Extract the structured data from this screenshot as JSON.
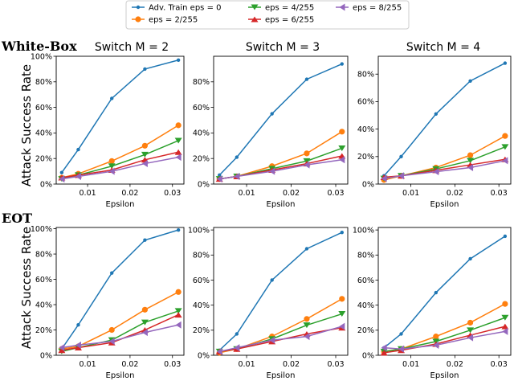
{
  "figure": {
    "row_labels": [
      "White-Box",
      "EOT"
    ],
    "column_titles": [
      "Switch M = 2",
      "Switch M = 3",
      "Switch M = 4"
    ],
    "ylabel": "Attack Success Rate",
    "xlabel": "Epsilon",
    "legend": [
      {
        "label": "Adv. Train eps = 0",
        "color": "#1f77b4",
        "marker": "circle-small"
      },
      {
        "label": "eps = 2/255",
        "color": "#ff7f0e",
        "marker": "circle"
      },
      {
        "label": "eps = 4/255",
        "color": "#2ca02c",
        "marker": "triangle-down"
      },
      {
        "label": "eps = 6/255",
        "color": "#d62728",
        "marker": "triangle-up"
      },
      {
        "label": "eps = 8/255",
        "color": "#9467bd",
        "marker": "triangle-left"
      }
    ]
  },
  "chart_data": [
    {
      "type": "line",
      "row": "White-Box",
      "title": "Switch M = 2",
      "xlabel": "Epsilon",
      "ylabel": "Attack Success Rate",
      "x": [
        0.0039,
        0.0078,
        0.0157,
        0.0235,
        0.0314
      ],
      "xticks": [
        "0.01",
        "0.02",
        "0.03"
      ],
      "xtick_values": [
        0.01,
        0.02,
        0.03
      ],
      "yticks": [
        "0%",
        "20%",
        "40%",
        "60%",
        "80%",
        "100%"
      ],
      "ytick_values": [
        0,
        20,
        40,
        60,
        80,
        100
      ],
      "xlim": [
        0.0026,
        0.0327
      ],
      "ylim": [
        0,
        100
      ],
      "grid": false,
      "series": [
        {
          "name": "Adv. Train eps = 0",
          "values": [
            9,
            27,
            67,
            90,
            97
          ]
        },
        {
          "name": "eps = 2/255",
          "values": [
            5,
            8,
            18,
            30,
            46
          ]
        },
        {
          "name": "eps = 4/255",
          "values": [
            4,
            7,
            14,
            23,
            34
          ]
        },
        {
          "name": "eps = 6/255",
          "values": [
            5,
            7,
            11,
            19,
            25
          ]
        },
        {
          "name": "eps = 8/255",
          "values": [
            4,
            6,
            10,
            16,
            21
          ]
        }
      ]
    },
    {
      "type": "line",
      "row": "White-Box",
      "title": "Switch M = 3",
      "xlabel": "Epsilon",
      "x": [
        0.0039,
        0.0078,
        0.0157,
        0.0235,
        0.0314
      ],
      "xticks": [
        "0.01",
        "0.02",
        "0.03"
      ],
      "xtick_values": [
        0.01,
        0.02,
        0.03
      ],
      "yticks": [
        "0%",
        "20%",
        "40%",
        "60%",
        "80%"
      ],
      "ytick_values": [
        0,
        20,
        40,
        60,
        80
      ],
      "xlim": [
        0.0026,
        0.0327
      ],
      "ylim": [
        0,
        100
      ],
      "grid": false,
      "series": [
        {
          "name": "Adv. Train eps = 0",
          "values": [
            7,
            21,
            55,
            82,
            94
          ]
        },
        {
          "name": "eps = 2/255",
          "values": [
            4,
            6,
            14,
            24,
            41
          ]
        },
        {
          "name": "eps = 4/255",
          "values": [
            4,
            6,
            12,
            18,
            28
          ]
        },
        {
          "name": "eps = 6/255",
          "values": [
            4,
            6,
            11,
            16,
            22
          ]
        },
        {
          "name": "eps = 8/255",
          "values": [
            4,
            6,
            10,
            15,
            19
          ]
        }
      ]
    },
    {
      "type": "line",
      "row": "White-Box",
      "title": "Switch M = 4",
      "xlabel": "Epsilon",
      "x": [
        0.0039,
        0.0078,
        0.0157,
        0.0235,
        0.0314
      ],
      "xticks": [
        "0.01",
        "0.02",
        "0.03"
      ],
      "xtick_values": [
        0.01,
        0.02,
        0.03
      ],
      "yticks": [
        "0%",
        "20%",
        "40%",
        "60%",
        "80%"
      ],
      "ytick_values": [
        0,
        20,
        40,
        60,
        80
      ],
      "xlim": [
        0.0026,
        0.0327
      ],
      "ylim": [
        0,
        93
      ],
      "grid": false,
      "series": [
        {
          "name": "Adv. Train eps = 0",
          "values": [
            6,
            20,
            51,
            75,
            88
          ]
        },
        {
          "name": "eps = 2/255",
          "values": [
            3,
            6,
            12,
            21,
            35
          ]
        },
        {
          "name": "eps = 4/255",
          "values": [
            4,
            6,
            11,
            17,
            27
          ]
        },
        {
          "name": "eps = 6/255",
          "values": [
            5,
            6,
            10,
            14,
            18
          ]
        },
        {
          "name": "eps = 8/255",
          "values": [
            4,
            6,
            9,
            12,
            17
          ]
        }
      ]
    },
    {
      "type": "line",
      "row": "EOT",
      "title": "",
      "xlabel": "Epsilon",
      "ylabel": "Attack Success Rate",
      "x": [
        0.0039,
        0.0078,
        0.0157,
        0.0235,
        0.0314
      ],
      "xticks": [
        "0.01",
        "0.02",
        "0.03"
      ],
      "xtick_values": [
        0.01,
        0.02,
        0.03
      ],
      "yticks": [
        "0%",
        "20%",
        "40%",
        "60%",
        "80%",
        "100%"
      ],
      "ytick_values": [
        0,
        20,
        40,
        60,
        80,
        100
      ],
      "xlim": [
        0.0026,
        0.0327
      ],
      "ylim": [
        0,
        101
      ],
      "grid": false,
      "series": [
        {
          "name": "Adv. Train eps = 0",
          "values": [
            5,
            24,
            65,
            91,
            99
          ]
        },
        {
          "name": "eps = 2/255",
          "values": [
            5,
            7,
            20,
            36,
            50
          ]
        },
        {
          "name": "eps = 4/255",
          "values": [
            3,
            6,
            12,
            26,
            35
          ]
        },
        {
          "name": "eps = 6/255",
          "values": [
            4,
            6,
            10,
            20,
            32
          ]
        },
        {
          "name": "eps = 8/255",
          "values": [
            6,
            8,
            11,
            18,
            24
          ]
        }
      ]
    },
    {
      "type": "line",
      "row": "EOT",
      "title": "",
      "xlabel": "Epsilon",
      "x": [
        0.0039,
        0.0078,
        0.0157,
        0.0235,
        0.0314
      ],
      "xticks": [
        "0.01",
        "0.02",
        "0.03"
      ],
      "xtick_values": [
        0.01,
        0.02,
        0.03
      ],
      "yticks": [
        "0%",
        "20%",
        "40%",
        "60%",
        "80%",
        "100%"
      ],
      "ytick_values": [
        0,
        20,
        40,
        60,
        80,
        100
      ],
      "xlim": [
        0.0026,
        0.0327
      ],
      "ylim": [
        0,
        102
      ],
      "grid": false,
      "series": [
        {
          "name": "Adv. Train eps = 0",
          "values": [
            4,
            17,
            60,
            85,
            98
          ]
        },
        {
          "name": "eps = 2/255",
          "values": [
            2,
            5,
            15,
            29,
            45
          ]
        },
        {
          "name": "eps = 4/255",
          "values": [
            3,
            5,
            13,
            24,
            33
          ]
        },
        {
          "name": "eps = 6/255",
          "values": [
            3,
            5,
            11,
            17,
            22
          ]
        },
        {
          "name": "eps = 8/255",
          "values": [
            3,
            6,
            12,
            15,
            23
          ]
        }
      ]
    },
    {
      "type": "line",
      "row": "EOT",
      "title": "",
      "xlabel": "Epsilon",
      "x": [
        0.0039,
        0.0078,
        0.0157,
        0.0235,
        0.0314
      ],
      "xticks": [
        "0.01",
        "0.02",
        "0.03"
      ],
      "xtick_values": [
        0.01,
        0.02,
        0.03
      ],
      "yticks": [
        "0%",
        "20%",
        "40%",
        "60%",
        "80%",
        "100%"
      ],
      "ytick_values": [
        0,
        20,
        40,
        60,
        80,
        100
      ],
      "xlim": [
        0.0026,
        0.0327
      ],
      "ylim": [
        0,
        102
      ],
      "grid": false,
      "series": [
        {
          "name": "Adv. Train eps = 0",
          "values": [
            6,
            17,
            50,
            77,
            95
          ]
        },
        {
          "name": "eps = 2/255",
          "values": [
            3,
            5,
            15,
            26,
            41
          ]
        },
        {
          "name": "eps = 4/255",
          "values": [
            3,
            5,
            11,
            20,
            30
          ]
        },
        {
          "name": "eps = 6/255",
          "values": [
            2,
            4,
            9,
            16,
            23
          ]
        },
        {
          "name": "eps = 8/255",
          "values": [
            6,
            5,
            8,
            14,
            19
          ]
        }
      ]
    }
  ]
}
